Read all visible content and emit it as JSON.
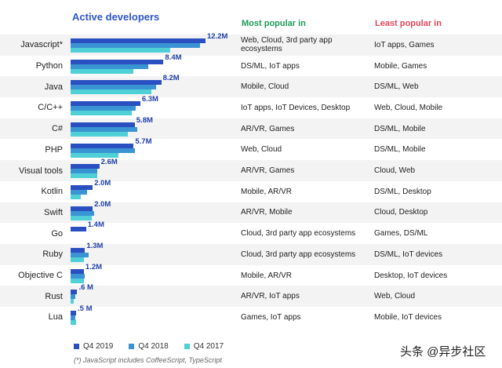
{
  "chart_data": {
    "type": "bar",
    "orientation": "horizontal",
    "title": "Active developers",
    "categories": [
      "Javascript*",
      "Python",
      "Java",
      "C/C++",
      "C#",
      "PHP",
      "Visual tools",
      "Kotlin",
      "Swift",
      "Go",
      "Ruby",
      "Objective C",
      "Rust",
      "Lua"
    ],
    "value_labels": [
      "12.2M",
      "8.4M",
      "8.2M",
      "6.3M",
      "5.8M",
      "5.7M",
      "2.6M",
      "2.0M",
      "2.0M",
      "1.4M",
      "1.3M",
      "1.2M",
      ".6 M",
      ".5 M"
    ],
    "series": [
      {
        "name": "Q4 2019",
        "color": "#2a4fc0",
        "values": [
          12.2,
          8.4,
          8.2,
          6.3,
          5.8,
          5.7,
          2.6,
          2.0,
          2.0,
          1.4,
          1.3,
          1.2,
          0.6,
          0.5
        ]
      },
      {
        "name": "Q4 2018",
        "color": "#3a93d2",
        "values": [
          11.7,
          7.0,
          7.7,
          5.9,
          6.0,
          5.8,
          2.4,
          1.5,
          2.1,
          null,
          1.6,
          1.3,
          0.4,
          0.4
        ]
      },
      {
        "name": "Q4 2017",
        "color": "#4fd0d6",
        "values": [
          9.0,
          5.7,
          7.3,
          5.5,
          5.2,
          4.3,
          2.4,
          0.9,
          1.9,
          null,
          1.2,
          1.2,
          0.3,
          0.5
        ]
      }
    ],
    "xlim": [
      0,
      12.2
    ],
    "legend_position": "bottom"
  },
  "headers": {
    "most": "Most popular in",
    "least": "Least popular in"
  },
  "most_popular": [
    "Web, Cloud, 3rd party app ecosystems",
    "DS/ML, IoT apps",
    "Mobile, Cloud",
    "IoT apps, IoT Devices, Desktop",
    "AR/VR, Games",
    "Web, Cloud",
    "AR/VR, Games",
    "Mobile, AR/VR",
    "AR/VR, Mobile",
    "Cloud, 3rd party app ecosystems",
    "Cloud, 3rd party app ecosystems",
    "Mobile, AR/VR",
    "AR/VR, IoT apps",
    "Games, IoT apps"
  ],
  "least_popular": [
    "IoT apps, Games",
    "Mobile, Games",
    "DS/ML, Web",
    "Web, Cloud, Mobile",
    "DS/ML, Mobile",
    "DS/ML, Mobile",
    "Cloud, Web",
    "DS/ML, Desktop",
    "Cloud, Desktop",
    "Games, DS/ML",
    "DS/ML, IoT devices",
    "Desktop, IoT devices",
    "Web, Cloud",
    "Mobile, IoT devices"
  ],
  "footnote": "(*) JavaScript includes CoffeeScript, TypeScript",
  "watermark": "头条 @异步社区"
}
